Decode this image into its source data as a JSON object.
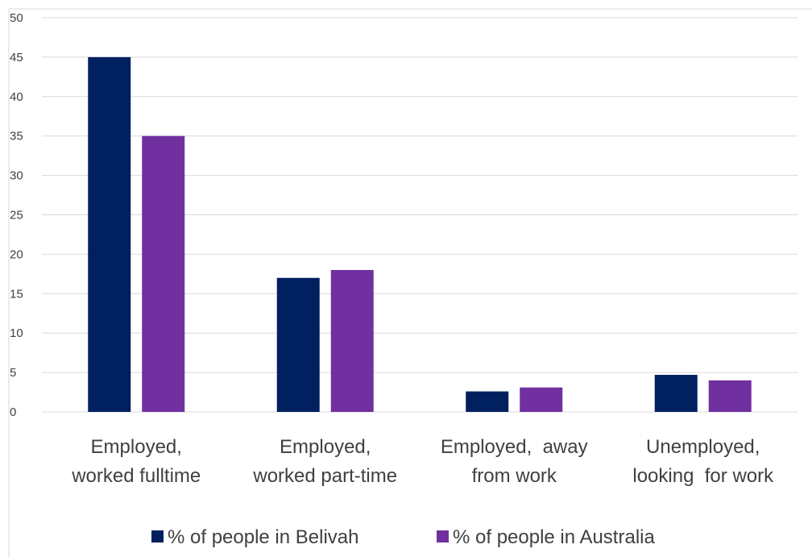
{
  "chart_data": {
    "type": "bar",
    "categories": [
      [
        "Employed,",
        "worked fulltime"
      ],
      [
        "Employed,",
        "worked part-time"
      ],
      [
        "Employed,  away",
        "from work"
      ],
      [
        "Unemployed,",
        "looking  for work"
      ]
    ],
    "series": [
      {
        "name": "% of people in Belivah",
        "color": "#002060",
        "values": [
          45,
          17,
          2.6,
          4.7
        ]
      },
      {
        "name": "% of people in Australia",
        "color": "#7030A0",
        "values": [
          35,
          18,
          3.1,
          4
        ]
      }
    ],
    "title": "",
    "xlabel": "",
    "ylabel": "",
    "ylim": [
      0,
      50
    ],
    "yticks": [
      "0",
      "5",
      "10",
      "15",
      "20",
      "25",
      "30",
      "35",
      "40",
      "45",
      "50"
    ],
    "grid": true,
    "legend_position": "bottom"
  }
}
